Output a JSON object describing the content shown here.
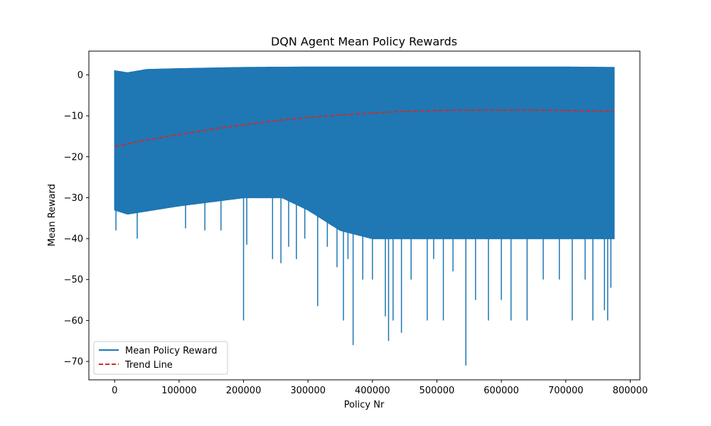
{
  "chart_data": {
    "type": "line",
    "title": "DQN Agent Mean Policy Rewards",
    "xlabel": "Policy Nr",
    "ylabel": "Mean Reward",
    "xlim": [
      -40000,
      815000
    ],
    "ylim": [
      -74.5,
      5.8
    ],
    "xticks": [
      0,
      100000,
      200000,
      300000,
      400000,
      500000,
      600000,
      700000,
      800000
    ],
    "yticks": [
      0,
      -10,
      -20,
      -30,
      -40,
      -50,
      -60,
      -70
    ],
    "grid": false,
    "legend": {
      "placement": "lower-left",
      "entries": [
        "Mean Policy Reward",
        "Trend Line"
      ]
    },
    "series": [
      {
        "name": "Mean Policy Reward",
        "color": "#1f77b4",
        "style": "solid",
        "x_range": [
          0,
          775000
        ],
        "upper_envelope": [
          [
            0,
            1.0
          ],
          [
            20000,
            0.5
          ],
          [
            50000,
            1.3
          ],
          [
            100000,
            1.5
          ],
          [
            200000,
            1.8
          ],
          [
            300000,
            1.9
          ],
          [
            400000,
            1.9
          ],
          [
            500000,
            1.9
          ],
          [
            600000,
            1.9
          ],
          [
            700000,
            1.9
          ],
          [
            775000,
            1.8
          ]
        ],
        "band_floor": [
          [
            0,
            -33
          ],
          [
            20000,
            -34
          ],
          [
            60000,
            -33
          ],
          [
            100000,
            -32
          ],
          [
            150000,
            -31
          ],
          [
            200000,
            -30
          ],
          [
            260000,
            -30
          ],
          [
            300000,
            -33
          ],
          [
            350000,
            -38
          ],
          [
            400000,
            -40
          ],
          [
            500000,
            -40
          ],
          [
            600000,
            -40
          ],
          [
            700000,
            -40
          ],
          [
            775000,
            -40
          ]
        ],
        "spikes": [
          [
            2000,
            -38
          ],
          [
            35000,
            -40
          ],
          [
            110000,
            -37.5
          ],
          [
            140000,
            -38
          ],
          [
            165000,
            -38
          ],
          [
            200000,
            -60
          ],
          [
            205000,
            -41.5
          ],
          [
            245000,
            -45
          ],
          [
            258000,
            -46
          ],
          [
            270000,
            -42
          ],
          [
            282000,
            -45
          ],
          [
            295000,
            -40
          ],
          [
            315000,
            -56.5
          ],
          [
            330000,
            -42
          ],
          [
            345000,
            -47
          ],
          [
            355000,
            -60
          ],
          [
            362000,
            -45
          ],
          [
            370000,
            -66
          ],
          [
            385000,
            -50
          ],
          [
            400000,
            -50
          ],
          [
            420000,
            -59
          ],
          [
            425000,
            -65
          ],
          [
            432000,
            -60
          ],
          [
            445000,
            -63
          ],
          [
            460000,
            -50
          ],
          [
            485000,
            -60
          ],
          [
            495000,
            -45
          ],
          [
            510000,
            -60
          ],
          [
            525000,
            -48
          ],
          [
            545000,
            -71
          ],
          [
            560000,
            -55
          ],
          [
            580000,
            -60
          ],
          [
            600000,
            -55
          ],
          [
            615000,
            -60
          ],
          [
            640000,
            -60
          ],
          [
            665000,
            -50
          ],
          [
            690000,
            -50
          ],
          [
            710000,
            -60
          ],
          [
            730000,
            -50
          ],
          [
            742000,
            -60
          ],
          [
            760000,
            -57.5
          ],
          [
            765000,
            -60
          ],
          [
            770000,
            -52
          ]
        ]
      },
      {
        "name": "Trend Line",
        "color": "#d62728",
        "style": "dashed",
        "points": [
          [
            0,
            -17.5
          ],
          [
            50000,
            -15.9
          ],
          [
            100000,
            -14.6
          ],
          [
            150000,
            -13.3
          ],
          [
            200000,
            -12.2
          ],
          [
            250000,
            -11.2
          ],
          [
            300000,
            -10.4
          ],
          [
            350000,
            -9.8
          ],
          [
            400000,
            -9.3
          ],
          [
            450000,
            -8.9
          ],
          [
            500000,
            -8.7
          ],
          [
            550000,
            -8.6
          ],
          [
            600000,
            -8.6
          ],
          [
            650000,
            -8.6
          ],
          [
            700000,
            -8.7
          ],
          [
            750000,
            -8.8
          ],
          [
            775000,
            -8.9
          ]
        ]
      }
    ]
  }
}
